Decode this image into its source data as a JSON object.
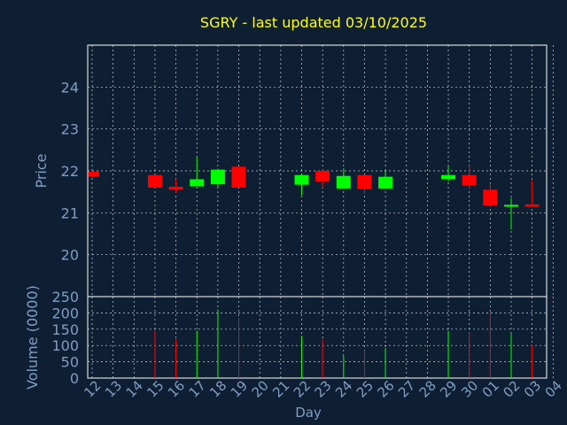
{
  "colors": {
    "background": "#0f1f33",
    "title": "#ffff00",
    "axis_text": "#7f9ec2",
    "grid": "#ffffff",
    "up": "#00ff00",
    "down": "#ff0000"
  },
  "chart_data": {
    "type": "candlestick",
    "title": "SGRY - last updated 03/10/2025",
    "xlabel": "Day",
    "price_ylabel": "Price",
    "volume_ylabel": "Volume (0000)",
    "x_ticks": [
      "12",
      "13",
      "14",
      "15",
      "16",
      "17",
      "18",
      "19",
      "20",
      "21",
      "22",
      "23",
      "24",
      "25",
      "26",
      "27",
      "28",
      "29",
      "30",
      "01",
      "02",
      "03",
      "04"
    ],
    "price_ylim": [
      19.0,
      25.0
    ],
    "price_ticks": [
      20,
      21,
      22,
      23,
      24
    ],
    "volume_ylim": [
      0,
      250
    ],
    "volume_ticks": [
      0,
      50,
      100,
      150,
      200,
      250
    ],
    "grid": true,
    "candles": [
      {
        "day": "12",
        "open": 21.98,
        "close": 21.86,
        "high": 21.98,
        "low": 21.86,
        "volume": 0
      },
      {
        "day": "15",
        "open": 21.9,
        "close": 21.6,
        "high": 21.9,
        "low": 21.6,
        "volume": 145
      },
      {
        "day": "16",
        "open": 21.62,
        "close": 21.55,
        "high": 21.8,
        "low": 21.48,
        "volume": 120
      },
      {
        "day": "17",
        "open": 21.63,
        "close": 21.8,
        "high": 22.32,
        "low": 21.63,
        "volume": 145
      },
      {
        "day": "18",
        "open": 21.68,
        "close": 22.03,
        "high": 22.05,
        "low": 21.6,
        "volume": 210
      },
      {
        "day": "19",
        "open": 22.1,
        "close": 21.6,
        "high": 22.1,
        "low": 21.6,
        "volume": 185
      },
      {
        "day": "22",
        "open": 21.67,
        "close": 21.9,
        "high": 21.93,
        "low": 21.42,
        "volume": 130
      },
      {
        "day": "23",
        "open": 22.0,
        "close": 21.75,
        "high": 22.03,
        "low": 21.6,
        "volume": 120
      },
      {
        "day": "24",
        "open": 21.58,
        "close": 21.88,
        "high": 22.06,
        "low": 21.58,
        "volume": 68
      },
      {
        "day": "25",
        "open": 21.9,
        "close": 21.57,
        "high": 21.9,
        "low": 21.45,
        "volume": 85
      },
      {
        "day": "26",
        "open": 21.58,
        "close": 21.86,
        "high": 22.0,
        "low": 21.58,
        "volume": 92
      },
      {
        "day": "29",
        "open": 21.8,
        "close": 21.9,
        "high": 22.12,
        "low": 21.75,
        "volume": 145
      },
      {
        "day": "30",
        "open": 21.9,
        "close": 21.65,
        "high": 22.12,
        "low": 21.58,
        "volume": 140
      },
      {
        "day": "01",
        "open": 21.55,
        "close": 21.17,
        "high": 21.7,
        "low": 21.17,
        "volume": 205
      },
      {
        "day": "02",
        "open": 21.17,
        "close": 21.19,
        "high": 21.35,
        "low": 20.6,
        "volume": 135
      },
      {
        "day": "03",
        "open": 21.2,
        "close": 21.15,
        "high": 21.77,
        "low": 21.15,
        "volume": 100
      }
    ]
  }
}
